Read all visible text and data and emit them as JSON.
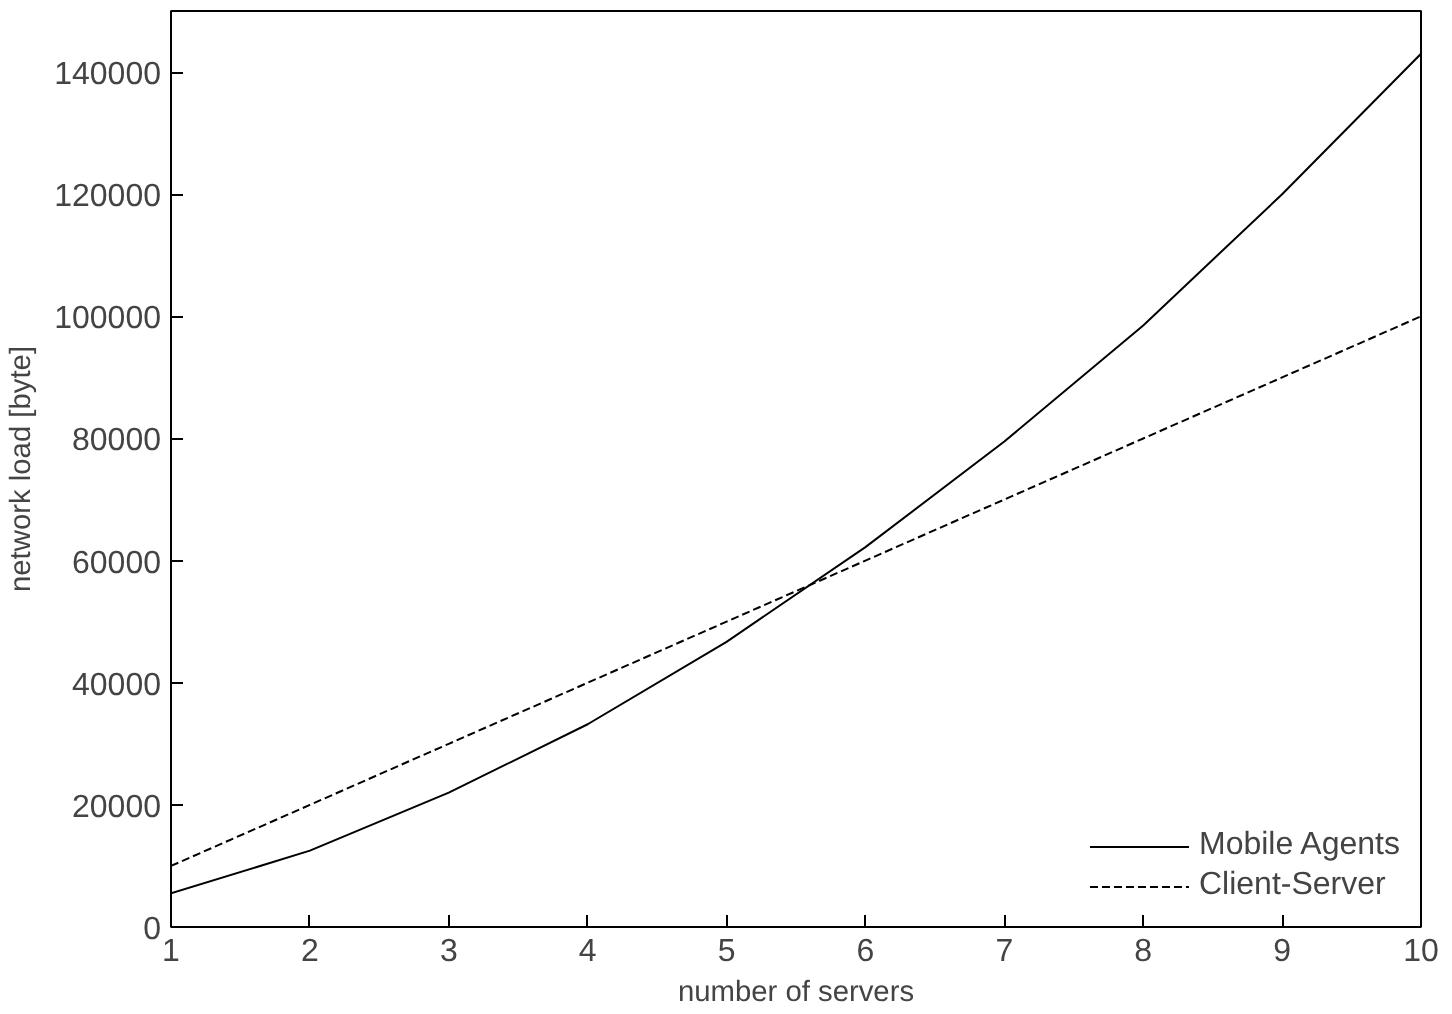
{
  "chart_data": {
    "type": "line",
    "xlabel": "number of servers",
    "ylabel": "network load [byte]",
    "x": [
      1,
      2,
      3,
      4,
      5,
      6,
      7,
      8,
      9,
      10
    ],
    "series": [
      {
        "name": "Mobile Agents",
        "color": "#000000",
        "line_style": "solid",
        "values": [
          5500,
          12500,
          22000,
          33200,
          46700,
          62200,
          79500,
          98500,
          120000,
          143000
        ]
      },
      {
        "name": "Client-Server",
        "color": "#000000",
        "line_style": "dashed",
        "values": [
          10000,
          20000,
          30000,
          40000,
          50000,
          60000,
          70000,
          80000,
          90000,
          100000
        ]
      }
    ],
    "xlim": [
      1,
      10
    ],
    "xticks": [
      1,
      2,
      3,
      4,
      5,
      6,
      7,
      8,
      9,
      10
    ],
    "ylim": [
      0,
      150000
    ],
    "yticks": [
      0,
      20000,
      40000,
      60000,
      80000,
      100000,
      120000,
      140000
    ],
    "grid": false,
    "legend": "bottom right",
    "marker": "none"
  }
}
